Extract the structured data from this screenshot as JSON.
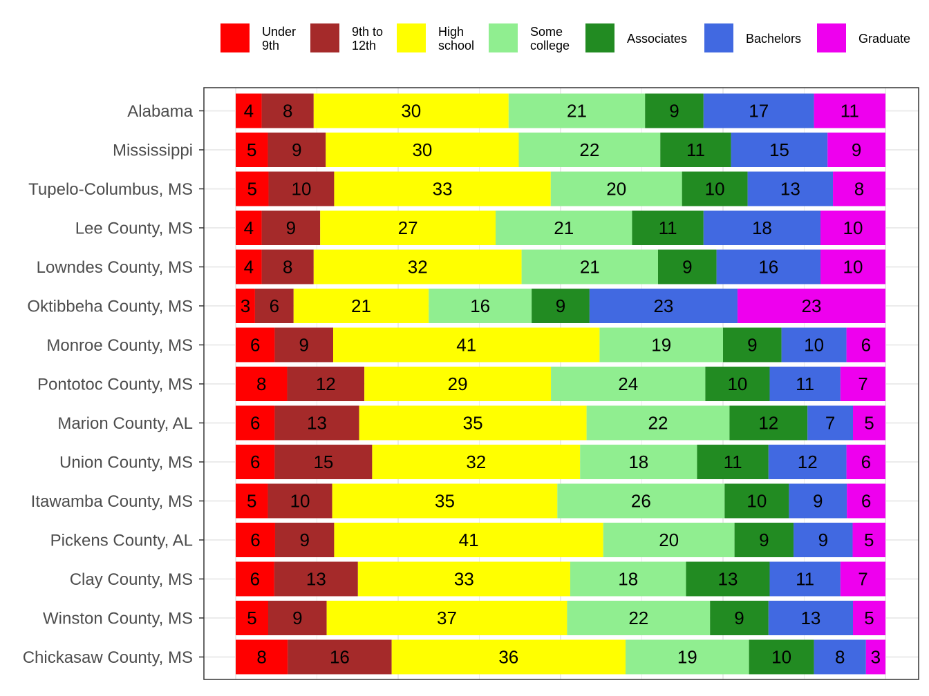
{
  "chart_data": {
    "type": "bar",
    "orientation": "horizontal",
    "stacked": "percent",
    "legend_position": "top",
    "grid": true,
    "categories": [
      "Alabama",
      "Mississippi",
      "Tupelo-Columbus, MS",
      "Lee County, MS",
      "Lowndes County, MS",
      "Oktibbeha County, MS",
      "Monroe County, MS",
      "Pontotoc County, MS",
      "Marion County, AL",
      "Union County, MS",
      "Itawamba County, MS",
      "Pickens County, AL",
      "Clay County, MS",
      "Winston County, MS",
      "Chickasaw County, MS"
    ],
    "series": [
      {
        "name": "Under\n9th",
        "color": "#ff0000",
        "values": [
          4,
          5,
          5,
          4,
          4,
          3,
          6,
          8,
          6,
          6,
          5,
          6,
          6,
          5,
          8
        ]
      },
      {
        "name": "9th to\n12th",
        "color": "#a52a2a",
        "values": [
          8,
          9,
          10,
          9,
          8,
          6,
          9,
          12,
          13,
          15,
          10,
          9,
          13,
          9,
          16
        ]
      },
      {
        "name": "High\nschool",
        "color": "#ffff00",
        "values": [
          30,
          30,
          33,
          27,
          32,
          21,
          41,
          29,
          35,
          32,
          35,
          41,
          33,
          37,
          36
        ]
      },
      {
        "name": "Some\ncollege",
        "color": "#90ee90",
        "values": [
          21,
          22,
          20,
          21,
          21,
          16,
          19,
          24,
          22,
          18,
          26,
          20,
          18,
          22,
          19
        ]
      },
      {
        "name": "Associates",
        "color": "#228b22",
        "values": [
          9,
          11,
          10,
          11,
          9,
          9,
          9,
          10,
          12,
          11,
          10,
          9,
          13,
          9,
          10
        ]
      },
      {
        "name": "Bachelors",
        "color": "#4169e1",
        "values": [
          17,
          15,
          13,
          18,
          16,
          23,
          10,
          11,
          7,
          12,
          9,
          9,
          11,
          13,
          8
        ]
      },
      {
        "name": "Graduate",
        "color": "#ee00ee",
        "values": [
          11,
          9,
          8,
          10,
          10,
          23,
          6,
          7,
          5,
          6,
          6,
          5,
          7,
          5,
          3
        ]
      }
    ]
  }
}
